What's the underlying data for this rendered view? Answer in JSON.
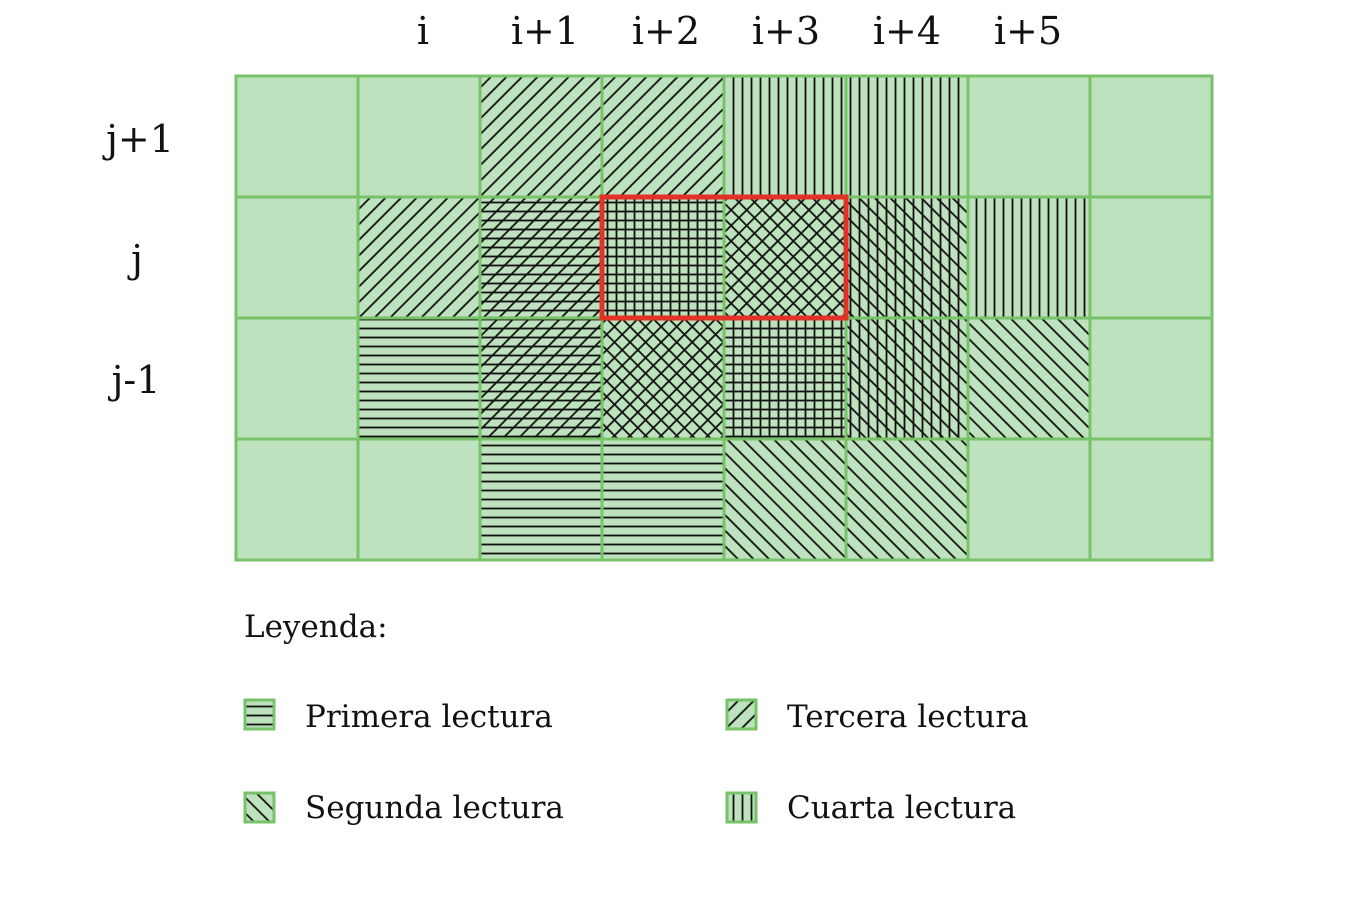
{
  "columns": [
    "i",
    "i+1",
    "i+2",
    "i+3",
    "i+4",
    "i+5"
  ],
  "rows": [
    "j+1",
    "j",
    "j-1"
  ],
  "grid": {
    "cells": [
      [
        [],
        [],
        [
          "d"
        ],
        [
          "d"
        ],
        [
          "v"
        ],
        [
          "v"
        ],
        [],
        []
      ],
      [
        [],
        [
          "d"
        ],
        [
          "d",
          "h"
        ],
        [
          "h",
          "v"
        ],
        [
          "a",
          "d"
        ],
        [
          "a",
          "v"
        ],
        [
          "v"
        ],
        []
      ],
      [
        [],
        [
          "h"
        ],
        [
          "h",
          "d"
        ],
        [
          "a",
          "d"
        ],
        [
          "h",
          "v"
        ],
        [
          "a",
          "v"
        ],
        [
          "a"
        ],
        []
      ],
      [
        [],
        [],
        [
          "h"
        ],
        [
          "h"
        ],
        [
          "a"
        ],
        [
          "a"
        ],
        [],
        []
      ]
    ],
    "highlight": {
      "row": 1,
      "col_start": 3,
      "col_end": 4
    }
  },
  "legend": {
    "title": "Leyenda:",
    "items": [
      {
        "label": "Primera lectura",
        "pattern": "h"
      },
      {
        "label": "Segunda lectura",
        "pattern": "a"
      },
      {
        "label": "Tercera lectura",
        "pattern": "d"
      },
      {
        "label": "Cuarta lectura",
        "pattern": "v"
      }
    ]
  },
  "colors": {
    "cell_fill": "#bde2bd",
    "cell_border": "#78c26a",
    "hatch": "#111111",
    "highlight": "#e23228"
  }
}
